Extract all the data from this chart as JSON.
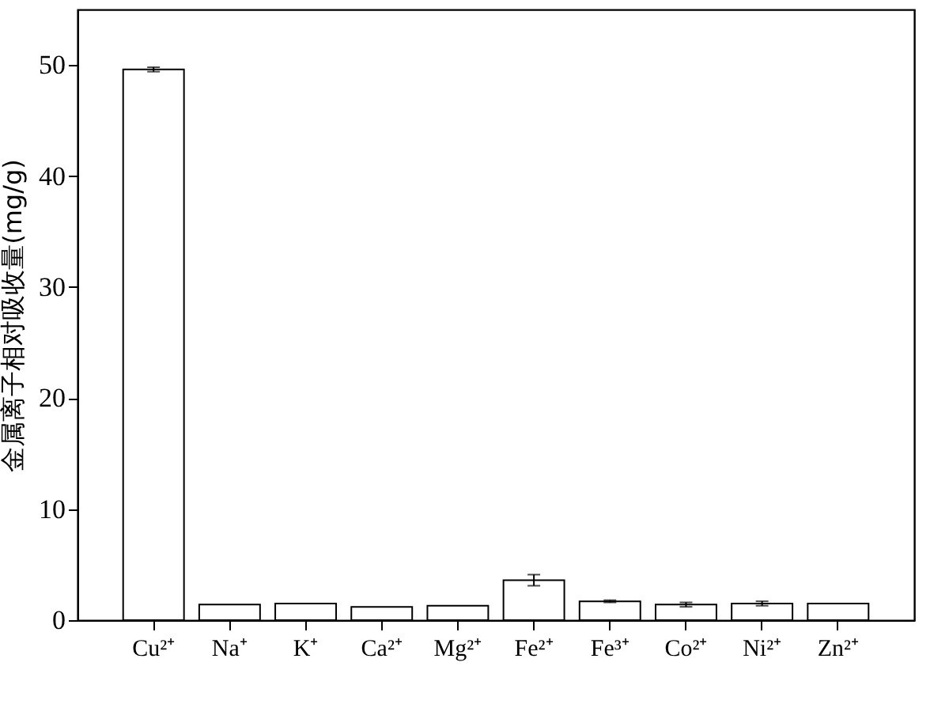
{
  "chart_data": {
    "type": "bar",
    "ylabel": "金属离子相对吸收量(mg/g)",
    "categories": [
      "Cu²⁺",
      "Na⁺",
      "K⁺",
      "Ca²⁺",
      "Mg²⁺",
      "Fe²⁺",
      "Fe³⁺",
      "Co²⁺",
      "Ni²⁺",
      "Zn²⁺"
    ],
    "values": [
      49.6,
      1.4,
      1.5,
      1.2,
      1.3,
      3.6,
      1.7,
      1.4,
      1.5,
      1.5
    ],
    "errors": [
      0.2,
      null,
      null,
      null,
      null,
      0.5,
      0.1,
      0.2,
      0.2,
      null
    ],
    "color": "#ffffff",
    "ylim": [
      0,
      55
    ],
    "yticks": [
      0,
      10,
      20,
      30,
      40,
      50
    ],
    "grid": false
  }
}
